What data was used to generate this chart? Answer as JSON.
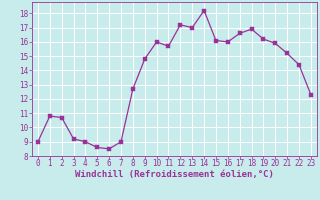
{
  "x": [
    0,
    1,
    2,
    3,
    4,
    5,
    6,
    7,
    8,
    9,
    10,
    11,
    12,
    13,
    14,
    15,
    16,
    17,
    18,
    19,
    20,
    21,
    22,
    23
  ],
  "y": [
    9,
    10.8,
    10.7,
    9.2,
    9.0,
    8.6,
    8.5,
    9.0,
    12.7,
    14.8,
    16.0,
    15.7,
    17.2,
    17.0,
    18.2,
    16.1,
    16.0,
    16.6,
    16.9,
    16.2,
    15.9,
    15.2,
    14.4,
    12.3
  ],
  "line_color": "#993399",
  "marker_color": "#993399",
  "bg_color": "#c8ebeb",
  "grid_color": "#ffffff",
  "axis_label_color": "#993399",
  "tick_color": "#993399",
  "xlabel": "Windchill (Refroidissement éolien,°C)",
  "ylabel": "",
  "xlim": [
    -0.5,
    23.5
  ],
  "ylim": [
    8,
    18.8
  ],
  "yticks": [
    8,
    9,
    10,
    11,
    12,
    13,
    14,
    15,
    16,
    17,
    18
  ],
  "xticks": [
    0,
    1,
    2,
    3,
    4,
    5,
    6,
    7,
    8,
    9,
    10,
    11,
    12,
    13,
    14,
    15,
    16,
    17,
    18,
    19,
    20,
    21,
    22,
    23
  ],
  "tick_fontsize": 5.5,
  "xlabel_fontsize": 6.5
}
